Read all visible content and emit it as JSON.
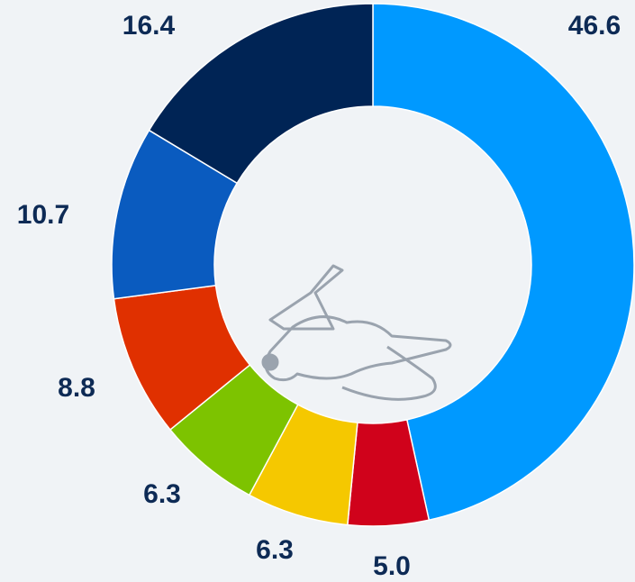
{
  "chart_data": {
    "type": "donut",
    "values": [
      46.6,
      5.0,
      6.3,
      6.3,
      8.8,
      10.7,
      16.4
    ],
    "value_labels": [
      "46.6",
      "5.0",
      "6.3",
      "6.3",
      "8.8",
      "10.7",
      "16.4"
    ],
    "colors": [
      "#0099ff",
      "#d0021b",
      "#f5c800",
      "#7dc300",
      "#e03000",
      "#0a5bbf",
      "#002455"
    ]
  }
}
